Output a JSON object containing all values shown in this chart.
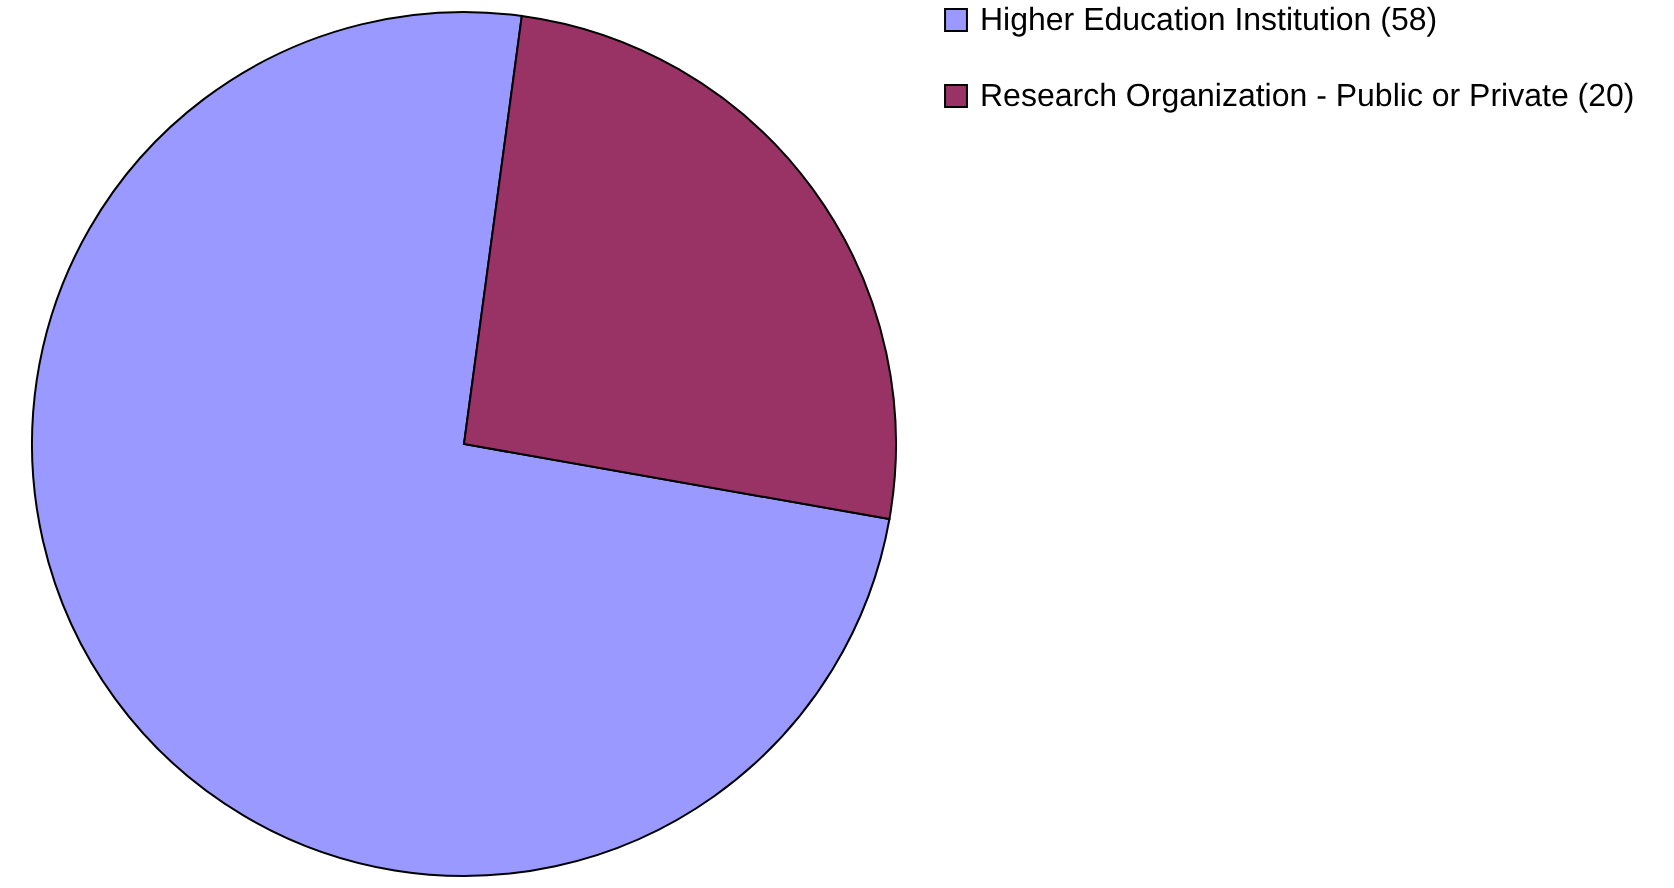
{
  "chart_data": {
    "type": "pie",
    "categories": [
      "Higher Education Institution (58)",
      "Research Organization - Public or Private (20)"
    ],
    "values": [
      58,
      20
    ],
    "colors": [
      "#9999ff",
      "#993366"
    ],
    "legend": "right"
  }
}
